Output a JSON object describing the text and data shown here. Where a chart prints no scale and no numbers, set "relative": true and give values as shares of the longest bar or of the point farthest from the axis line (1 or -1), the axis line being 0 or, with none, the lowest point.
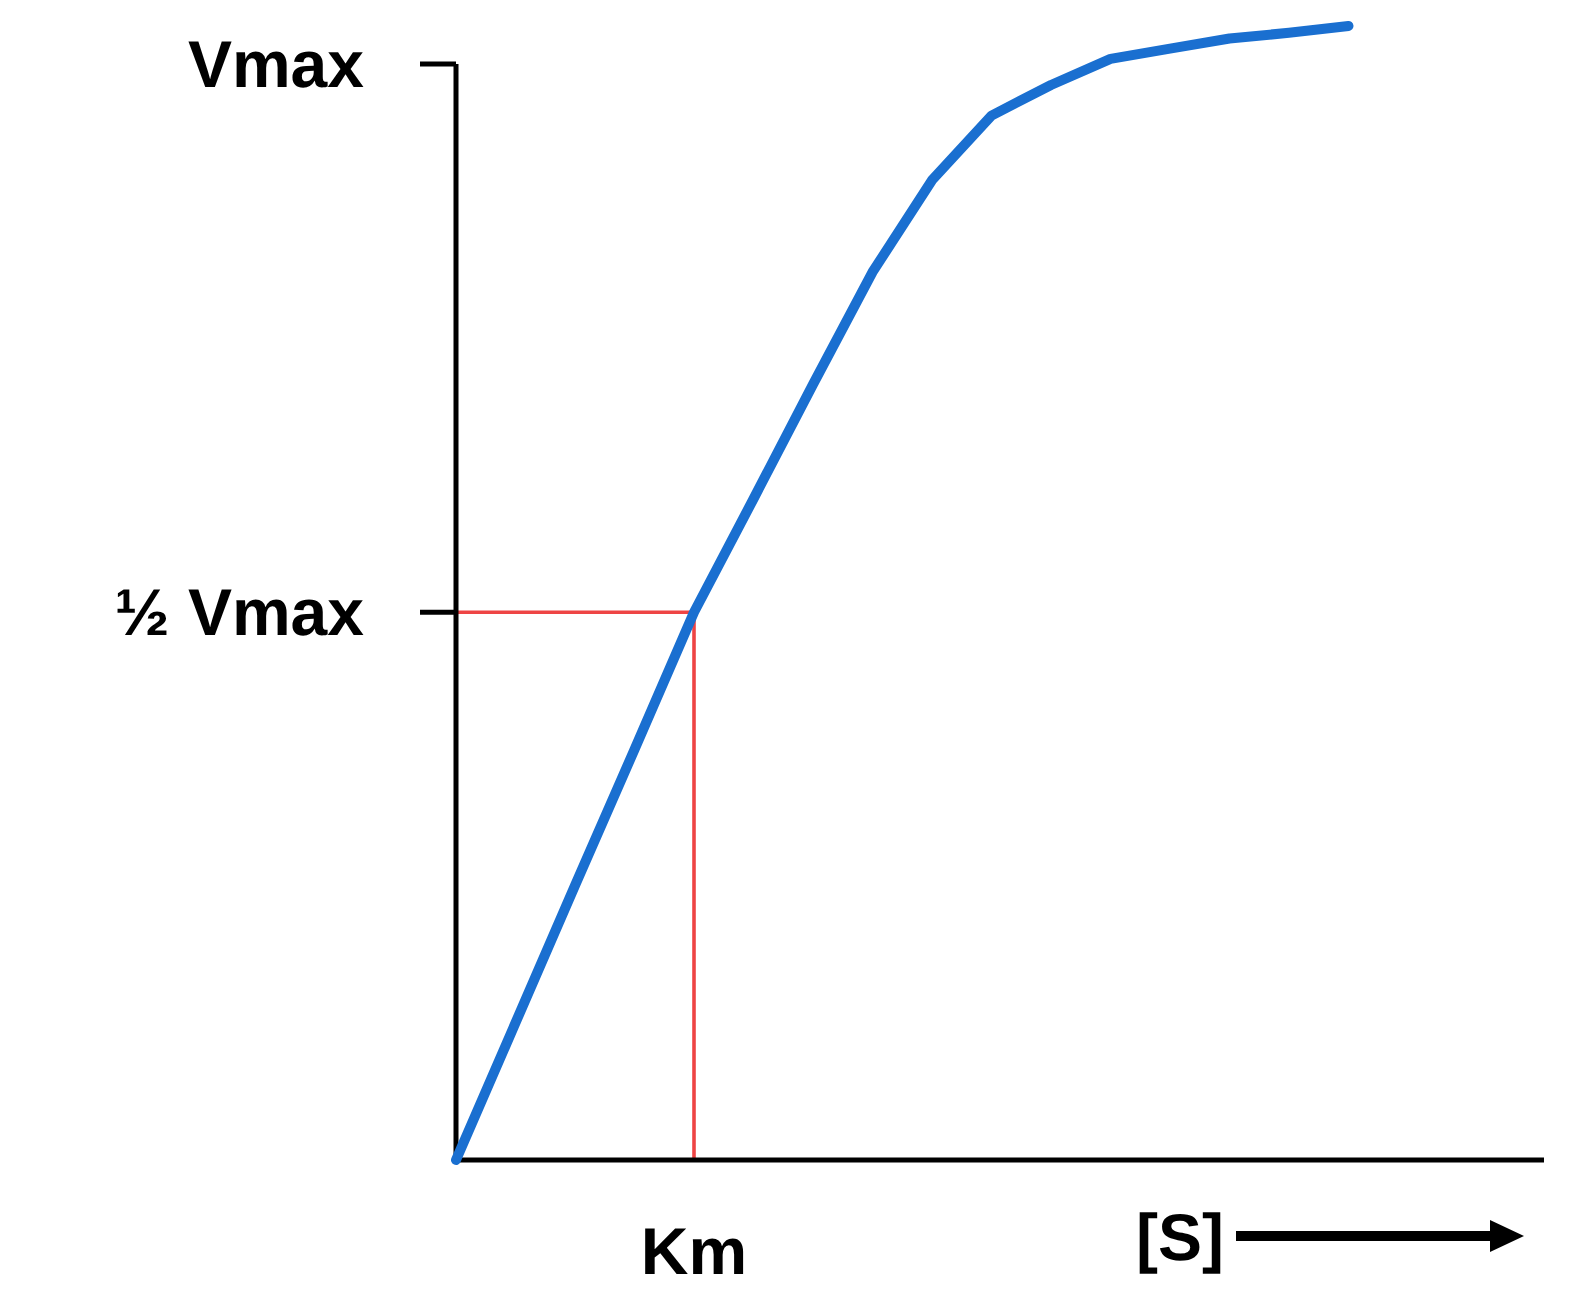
{
  "chart_data": {
    "type": "line",
    "relative": true,
    "xlabel": "[S]",
    "categories": [
      null,
      null,
      null,
      null,
      null,
      null,
      null,
      null,
      null,
      null,
      null,
      null,
      null,
      null,
      null,
      null,
      null,
      null,
      null
    ],
    "grid": false,
    "marker": "none",
    "annotations": [
      "Vmax",
      "Km"
    ],
    "ref_lines": [
      {
        "axis": "y",
        "value": 0.483,
        "label": "½ Vmax",
        "color": "#ee4444"
      }
    ],
    "series": [
      {
        "color": "#1a6fd0",
        "values": [
          0,
          0.121,
          0.242,
          0.362,
          0.483,
          0.583,
          0.684,
          0.783,
          0.864,
          0.921,
          0.948,
          0.971,
          0.98,
          0.989,
          0.994,
          1,
          null,
          null,
          null
        ]
      }
    ]
  }
}
